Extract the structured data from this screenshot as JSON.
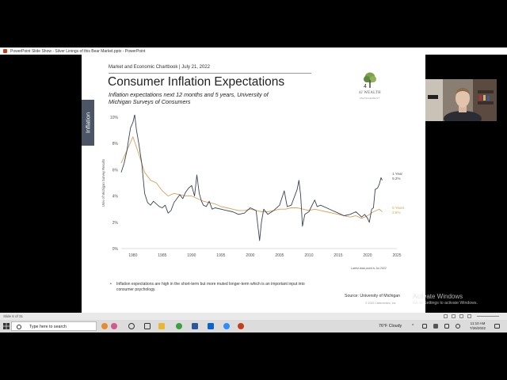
{
  "window": {
    "title": "PowerPoint Slide Show  -  Silver Linings of this Bear Market.pptx  -  PowerPoint"
  },
  "slide": {
    "side_tab": "Inflation",
    "header": "Market and Economic Chartbook | July 21, 2022",
    "title": "Consumer Inflation Expectations",
    "subtitle": "Inflation expectations next 12 months and 5 years, University of Michigan Surveys of Consumers",
    "logo_text": "4J WEALTH",
    "logo_subtext": "MANAGEMENT",
    "data_note": "Latest data point is Jul 2022",
    "bullet": "Inflation expectations are high in the short-term but more muted longer-term which is an important input into consumer psychology.",
    "source": "Source: University of Michigan",
    "copyright": "© 2022 Clearnomics, Inc."
  },
  "chart_data": {
    "type": "line",
    "ylabel": "Univ of Michigan Survey Results",
    "xlim": [
      1978,
      2025
    ],
    "ylim": [
      0,
      10
    ],
    "xticks": [
      "1980",
      "1985",
      "1990",
      "1995",
      "2000",
      "2005",
      "2010",
      "2015",
      "2020",
      "2025"
    ],
    "yticks": [
      "0%",
      "2%",
      "4%",
      "6%",
      "8%",
      "10%"
    ],
    "series": [
      {
        "name": "1 Year",
        "end_label": "5.2%",
        "color": "#3a4456",
        "x": [
          1978.0,
          1978.5,
          1979.0,
          1979.3,
          1979.6,
          1980.0,
          1980.3,
          1980.6,
          1981.0,
          1981.5,
          1982.0,
          1982.5,
          1983.0,
          1983.5,
          1984.0,
          1984.5,
          1985.0,
          1985.5,
          1986.0,
          1986.5,
          1987.0,
          1987.5,
          1988.0,
          1988.5,
          1989.0,
          1989.5,
          1990.0,
          1990.5,
          1990.9,
          1991.3,
          1991.7,
          1992.0,
          1992.5,
          1993.0,
          1993.5,
          1994.0,
          1995.0,
          1996.0,
          1997.0,
          1998.0,
          1999.0,
          2000.0,
          2001.0,
          2001.6,
          2001.9,
          2002.3,
          2003.0,
          2004.0,
          2005.0,
          2005.8,
          2006.3,
          2007.0,
          2008.0,
          2008.3,
          2008.6,
          2008.9,
          2009.3,
          2010.0,
          2011.0,
          2011.4,
          2012.0,
          2013.0,
          2014.0,
          2015.0,
          2016.0,
          2017.0,
          2018.0,
          2019.0,
          2019.5,
          2020.0,
          2020.3,
          2020.7,
          2021.0,
          2021.3,
          2021.7,
          2022.0,
          2022.3,
          2022.5
        ],
        "y": [
          5.8,
          6.5,
          7.5,
          8.4,
          9.2,
          9.6,
          10.2,
          9.0,
          8.0,
          6.5,
          4.2,
          3.5,
          3.3,
          3.6,
          3.4,
          3.2,
          3.1,
          3.3,
          2.7,
          2.9,
          3.5,
          3.8,
          4.1,
          3.8,
          4.3,
          4.6,
          4.8,
          4.0,
          5.6,
          4.2,
          3.6,
          3.3,
          3.2,
          3.6,
          3.0,
          3.1,
          3.0,
          2.9,
          2.8,
          2.6,
          2.7,
          3.1,
          2.9,
          0.6,
          2.0,
          3.0,
          2.6,
          2.9,
          3.3,
          4.4,
          3.2,
          3.3,
          4.5,
          5.2,
          4.0,
          1.7,
          2.6,
          2.8,
          3.7,
          3.2,
          3.3,
          3.1,
          2.9,
          2.7,
          2.5,
          2.6,
          2.8,
          2.4,
          2.6,
          2.3,
          2.0,
          3.0,
          3.1,
          4.5,
          4.6,
          4.9,
          5.4,
          5.2
        ]
      },
      {
        "name": "5 Years",
        "end_label": "2.8%",
        "color": "#d9a05a",
        "x": [
          1978.0,
          1979.0,
          1980.0,
          1981.0,
          1982.0,
          1983.0,
          1984.0,
          1985.0,
          1986.0,
          1987.0,
          1988.0,
          1989.0,
          1990.0,
          1991.0,
          1992.0,
          1993.0,
          1994.0,
          1995.0,
          1996.0,
          1997.0,
          1998.0,
          1999.0,
          2000.0,
          2001.0,
          2002.0,
          2003.0,
          2004.0,
          2005.0,
          2006.0,
          2007.0,
          2008.0,
          2009.0,
          2010.0,
          2011.0,
          2012.0,
          2013.0,
          2014.0,
          2015.0,
          2016.0,
          2017.0,
          2018.0,
          2019.0,
          2020.0,
          2021.0,
          2021.5,
          2022.0,
          2022.5
        ],
        "y": [
          6.5,
          7.5,
          8.5,
          7.2,
          5.8,
          5.2,
          5.0,
          4.4,
          4.0,
          4.2,
          4.1,
          4.0,
          4.0,
          3.8,
          3.6,
          3.5,
          3.4,
          3.2,
          3.1,
          3.0,
          2.9,
          2.9,
          3.0,
          2.9,
          2.8,
          2.8,
          2.9,
          3.0,
          3.0,
          3.1,
          3.1,
          3.0,
          2.9,
          3.0,
          2.9,
          2.8,
          2.7,
          2.6,
          2.5,
          2.4,
          2.5,
          2.3,
          2.5,
          2.8,
          2.9,
          3.0,
          2.8
        ]
      }
    ]
  },
  "ui": {
    "watermark_title": "Activate Windows",
    "watermark_sub": "Go to Settings to activate Windows.",
    "status_left": "Slide 6 of 31",
    "taskbar_search": "Type here to search",
    "weather": "76°F  Cloudy",
    "time": "11:10 AM",
    "date": "7/26/2022"
  }
}
